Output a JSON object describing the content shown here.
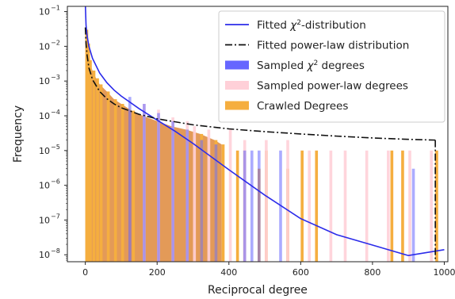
{
  "chart_data": {
    "type": "bar",
    "title": "",
    "xlabel": "Reciprocal degree",
    "ylabel": "Frequency",
    "xlim": [
      -50,
      1010
    ],
    "ylim_log10": [
      -8.2,
      -0.85
    ],
    "yscale": "log",
    "grid": false,
    "legend_position": "top-right",
    "x_ticks": [
      0,
      200,
      400,
      600,
      800,
      1000
    ],
    "x_tick_labels": [
      "0",
      "200",
      "400",
      "600",
      "800",
      "1000"
    ],
    "y_ticks_exponent": [
      -1,
      -2,
      -3,
      -4,
      -5,
      -6,
      -7,
      -8
    ],
    "y_tick_labels": [
      "10",
      "10",
      "10",
      "10",
      "10",
      "10",
      "10",
      "10"
    ],
    "y_tick_label_exponents": [
      "−1",
      "−2",
      "−3",
      "−4",
      "−5",
      "−6",
      "−7",
      "−8"
    ],
    "colors": {
      "chi2_line": "#2b2bea",
      "powerlaw_line": "#111111",
      "chi2_samples": "#6666ff",
      "powerlaw_samples": "#ffd0d8",
      "crawled": "#f5ae3f",
      "overlap": "#e39a58"
    },
    "legend": [
      {
        "key": "chi2_line",
        "label_pre": "Fitted ",
        "label_math": "χ",
        "label_sup": "2",
        "label_post": "-distribution",
        "kind": "line"
      },
      {
        "key": "powerlaw_line",
        "label_pre": "Fitted power-law distribution",
        "label_math": "",
        "label_sup": "",
        "label_post": "",
        "kind": "dashdot"
      },
      {
        "key": "chi2_samples",
        "label_pre": "Sampled ",
        "label_math": "χ",
        "label_sup": "2",
        "label_post": " degrees",
        "kind": "patch"
      },
      {
        "key": "powerlaw_samples",
        "label_pre": "Sampled power-law degrees",
        "label_math": "",
        "label_sup": "",
        "label_post": "",
        "kind": "patch"
      },
      {
        "key": "crawled",
        "label_pre": "Crawled Degrees",
        "label_math": "",
        "label_sup": "",
        "label_post": "",
        "kind": "patch"
      }
    ],
    "series": [
      {
        "name": "Fitted χ²-distribution",
        "kind": "line",
        "x": [
          0,
          2,
          5,
          10,
          20,
          40,
          60,
          80,
          100,
          150,
          200,
          250,
          300,
          400,
          500,
          600,
          700,
          800,
          900,
          1000
        ],
        "y": [
          0.17,
          0.04,
          0.02,
          0.01,
          0.0045,
          0.0017,
          0.0009,
          0.00055,
          0.00037,
          0.00016,
          7.5e-05,
          3.6e-05,
          1.6e-05,
          2.8e-06,
          5.2e-07,
          1.1e-07,
          3.8e-08,
          1.9e-08,
          9.5e-09,
          1.4e-08
        ]
      },
      {
        "name": "Fitted power-law distribution",
        "kind": "dashdot",
        "x": [
          0,
          2,
          5,
          10,
          20,
          40,
          60,
          80,
          100,
          150,
          200,
          300,
          400,
          500,
          600,
          700,
          800,
          900,
          975
        ],
        "y": [
          0.035,
          0.012,
          0.0055,
          0.0024,
          0.0011,
          0.0005,
          0.00031,
          0.00022,
          0.00017,
          0.00011,
          8.2e-05,
          5.5e-05,
          4.2e-05,
          3.5e-05,
          3e-05,
          2.6e-05,
          2.3e-05,
          2.1e-05,
          2e-05
        ]
      },
      {
        "name": "Crawled Degrees",
        "kind": "bars",
        "x": [
          0,
          5,
          10,
          20,
          30,
          40,
          60,
          80,
          100,
          130,
          160,
          200,
          240,
          280,
          320,
          360,
          380,
          420,
          440,
          480,
          500,
          560,
          600,
          640,
          850,
          880,
          975
        ],
        "y": [
          0.03,
          0.012,
          0.004,
          0.002,
          0.0012,
          0.0008,
          0.0005,
          0.0003,
          0.00022,
          0.00014,
          0.0001,
          7e-05,
          5e-05,
          4e-05,
          3e-05,
          2e-05,
          1.5e-05,
          1e-05,
          1e-05,
          3e-06,
          1e-05,
          3e-06,
          1e-05,
          1e-05,
          1e-05,
          1e-05,
          1e-05
        ]
      },
      {
        "name": "Sampled χ² degrees",
        "kind": "bars",
        "x": [
          120,
          160,
          200,
          240,
          280,
          320,
          360,
          440,
          460,
          480,
          540,
          910
        ],
        "y": [
          0.00035,
          0.00022,
          0.00012,
          7e-05,
          4e-05,
          2e-05,
          1.5e-05,
          1e-05,
          1e-05,
          1e-05,
          1e-05,
          3e-06
        ]
      },
      {
        "name": "Sampled power-law degrees",
        "kind": "bars",
        "x": [
          160,
          200,
          240,
          280,
          300,
          340,
          400,
          440,
          500,
          560,
          620,
          680,
          720,
          780,
          840,
          900,
          960
        ],
        "y": [
          0.00022,
          0.00015,
          9e-05,
          7e-05,
          5e-05,
          4e-05,
          4e-05,
          2e-05,
          2e-05,
          2e-05,
          1e-05,
          1e-05,
          1e-05,
          1e-05,
          1e-05,
          1e-05,
          1e-05
        ]
      }
    ]
  }
}
